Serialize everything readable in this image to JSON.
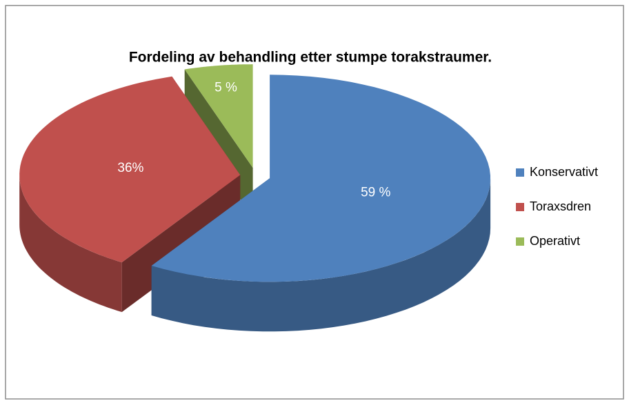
{
  "chart_data": {
    "type": "pie",
    "title": "Fordeling av behandling etter stumpe torakstraumer.",
    "categories": [
      "Konservativt",
      "Toraxsdren",
      "Operativt"
    ],
    "values": [
      59,
      36,
      5
    ],
    "value_labels": [
      "59 %",
      "36%",
      "5 %"
    ],
    "colors": [
      "#4f81bd",
      "#c0504d",
      "#9bbb59"
    ],
    "legend": "right"
  }
}
